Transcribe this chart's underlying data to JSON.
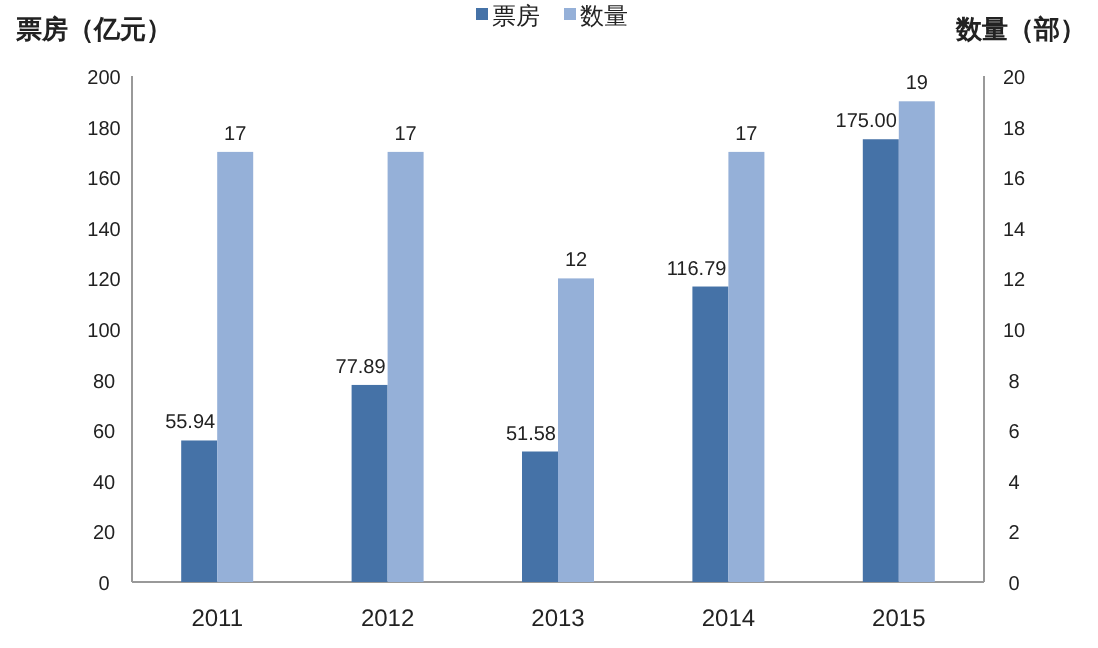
{
  "chart_data": {
    "type": "bar",
    "categories": [
      "2011",
      "2012",
      "2013",
      "2014",
      "2015"
    ],
    "series": [
      {
        "name": "票房",
        "color": "#4572a7",
        "values": [
          55.94,
          77.89,
          51.58,
          116.79,
          175.0
        ],
        "value_labels": [
          "55.94",
          "77.89",
          "51.58",
          "116.79",
          "175.00"
        ]
      },
      {
        "name": "数量",
        "color": "#95b0d8",
        "axis": "y2",
        "values": [
          17,
          17,
          12,
          17,
          19
        ],
        "value_labels": [
          "17",
          "17",
          "12",
          "17",
          "19"
        ]
      }
    ],
    "ylabel": "票房（亿元）",
    "y2label": "数量（部）",
    "ylim": [
      0,
      200
    ],
    "yticks": [
      0,
      20,
      40,
      60,
      80,
      100,
      120,
      140,
      160,
      180,
      200
    ],
    "y2lim": [
      0,
      20
    ],
    "y2ticks": [
      0,
      2,
      4,
      6,
      8,
      10,
      12,
      14,
      16,
      18,
      20
    ],
    "legend": "top",
    "grid": false
  }
}
